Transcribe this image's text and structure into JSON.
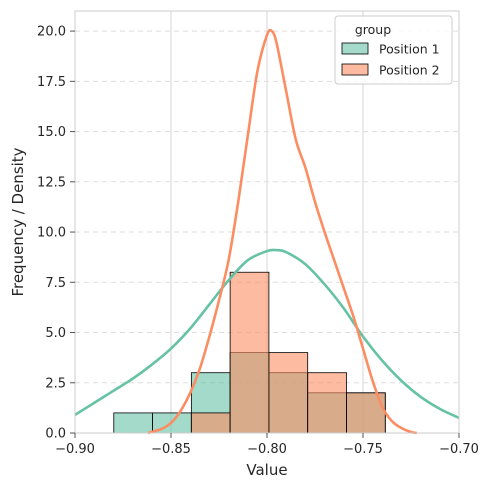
{
  "chart_data": {
    "type": "histogram",
    "xlabel": "Value",
    "ylabel": "Frequency / Density",
    "xlim": [
      -0.9,
      -0.7
    ],
    "ylim": [
      0,
      21
    ],
    "xticks": [
      -0.9,
      -0.85,
      -0.8,
      -0.75,
      -0.7
    ],
    "xtick_labels": [
      "−0.90",
      "−0.85",
      "−0.80",
      "−0.75",
      "−0.70"
    ],
    "yticks": [
      0,
      2.5,
      5.0,
      7.5,
      10.0,
      12.5,
      15.0,
      17.5,
      20.0
    ],
    "ytick_labels": [
      "0.0",
      "2.5",
      "5.0",
      "7.5",
      "10.0",
      "12.5",
      "15.0",
      "17.5",
      "20.0"
    ],
    "grid": true,
    "legend": {
      "title": "group",
      "placement": "top-right"
    },
    "series": [
      {
        "name": "Position 1",
        "color": "#66c2a5",
        "bins": [
          {
            "x0": -0.8798,
            "x1": -0.8596,
            "count": 1
          },
          {
            "x0": -0.8596,
            "x1": -0.8394,
            "count": 1
          },
          {
            "x0": -0.8394,
            "x1": -0.8192,
            "count": 3
          },
          {
            "x0": -0.8192,
            "x1": -0.799,
            "count": 4
          },
          {
            "x0": -0.799,
            "x1": -0.7788,
            "count": 3
          },
          {
            "x0": -0.7788,
            "x1": -0.7586,
            "count": 2
          },
          {
            "x0": -0.7586,
            "x1": -0.7384,
            "count": 2
          }
        ],
        "kde": {
          "x": [
            -0.9,
            -0.89,
            -0.88,
            -0.87,
            -0.86,
            -0.85,
            -0.84,
            -0.83,
            -0.82,
            -0.81,
            -0.8,
            -0.795,
            -0.79,
            -0.78,
            -0.77,
            -0.76,
            -0.75,
            -0.74,
            -0.73,
            -0.72,
            -0.71,
            -0.7
          ],
          "y": [
            0.9,
            1.5,
            2.1,
            2.7,
            3.4,
            4.2,
            5.2,
            6.4,
            7.6,
            8.6,
            9.05,
            9.1,
            9.0,
            8.4,
            7.4,
            6.2,
            4.8,
            3.6,
            2.6,
            1.8,
            1.2,
            0.75
          ]
        }
      },
      {
        "name": "Position 2",
        "color": "#fc8d62",
        "bins": [
          {
            "x0": -0.8394,
            "x1": -0.8192,
            "count": 1
          },
          {
            "x0": -0.8192,
            "x1": -0.799,
            "count": 8
          },
          {
            "x0": -0.799,
            "x1": -0.7788,
            "count": 4
          },
          {
            "x0": -0.7788,
            "x1": -0.7586,
            "count": 3
          },
          {
            "x0": -0.7586,
            "x1": -0.7384,
            "count": 2
          }
        ],
        "kde": {
          "x": [
            -0.862,
            -0.855,
            -0.85,
            -0.845,
            -0.84,
            -0.835,
            -0.83,
            -0.825,
            -0.82,
            -0.815,
            -0.81,
            -0.805,
            -0.8,
            -0.7975,
            -0.795,
            -0.79,
            -0.785,
            -0.78,
            -0.775,
            -0.77,
            -0.765,
            -0.76,
            -0.755,
            -0.75,
            -0.745,
            -0.74,
            -0.735,
            -0.73,
            -0.725,
            -0.722
          ],
          "y": [
            0.0,
            0.2,
            0.5,
            1.1,
            2.0,
            3.2,
            4.8,
            6.6,
            8.6,
            11.5,
            14.8,
            18.0,
            19.8,
            20.0,
            19.4,
            17.0,
            14.6,
            13.2,
            11.5,
            10.0,
            8.6,
            7.2,
            5.8,
            4.2,
            2.6,
            1.3,
            0.6,
            0.25,
            0.05,
            0.0
          ]
        }
      }
    ]
  }
}
